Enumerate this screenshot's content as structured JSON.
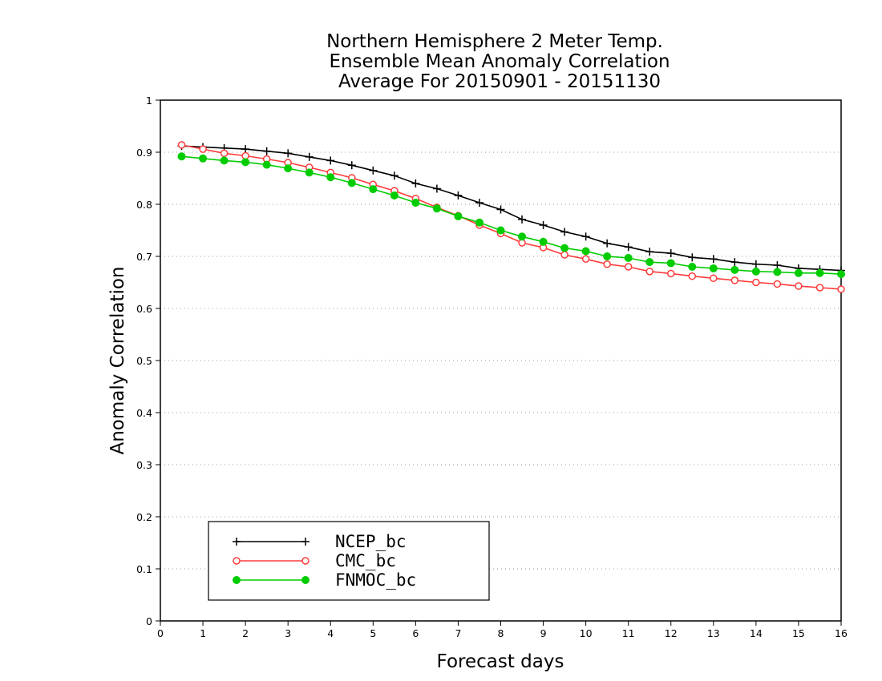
{
  "chart_data": {
    "type": "line",
    "title": [
      "Northern Hemisphere 2 Meter Temp.",
      "Ensemble Mean Anomaly Correlation",
      "Average For 20150901 - 20151130"
    ],
    "xlabel": "Forecast days",
    "ylabel": "Anomaly Correlation",
    "xlim": [
      0,
      16
    ],
    "ylim": [
      0,
      1
    ],
    "xticks": [
      "0",
      "1",
      "2",
      "3",
      "4",
      "5",
      "6",
      "7",
      "8",
      "9",
      "10",
      "11",
      "12",
      "13",
      "14",
      "15",
      "16"
    ],
    "yticks": [
      "0",
      "0.1",
      "0.2",
      "0.3",
      "0.4",
      "0.5",
      "0.6",
      "0.7",
      "0.8",
      "0.9",
      "1"
    ],
    "grid": "dotted horizontal",
    "legend_position": "bottom-left",
    "x": [
      0.5,
      1,
      1.5,
      2,
      2.5,
      3,
      3.5,
      4,
      4.5,
      5,
      5.5,
      6,
      6.5,
      7,
      7.5,
      8,
      8.5,
      9,
      9.5,
      10,
      10.5,
      11,
      11.5,
      12,
      12.5,
      13,
      13.5,
      14,
      14.5,
      15,
      15.5,
      16
    ],
    "series": [
      {
        "name": "NCEP_bc",
        "color": "#000000",
        "marker": "plus",
        "values": [
          0.912,
          0.91,
          0.908,
          0.906,
          0.902,
          0.898,
          0.891,
          0.884,
          0.875,
          0.865,
          0.855,
          0.84,
          0.83,
          0.817,
          0.803,
          0.79,
          0.771,
          0.76,
          0.747,
          0.738,
          0.725,
          0.718,
          0.709,
          0.706,
          0.698,
          0.695,
          0.689,
          0.685,
          0.683,
          0.677,
          0.675,
          0.673
        ]
      },
      {
        "name": "CMC_bc",
        "color": "#ff3b3b",
        "marker": "open-circle",
        "values": [
          0.914,
          0.906,
          0.898,
          0.893,
          0.887,
          0.88,
          0.871,
          0.861,
          0.851,
          0.838,
          0.826,
          0.811,
          0.794,
          0.778,
          0.76,
          0.744,
          0.726,
          0.717,
          0.703,
          0.695,
          0.685,
          0.68,
          0.671,
          0.667,
          0.662,
          0.658,
          0.654,
          0.65,
          0.647,
          0.643,
          0.64,
          0.637
        ]
      },
      {
        "name": "FNMOC_bc",
        "color": "#00cc00",
        "marker": "filled-circle",
        "values": [
          0.892,
          0.888,
          0.884,
          0.881,
          0.876,
          0.869,
          0.861,
          0.852,
          0.841,
          0.829,
          0.817,
          0.803,
          0.792,
          0.777,
          0.765,
          0.75,
          0.738,
          0.728,
          0.716,
          0.71,
          0.7,
          0.697,
          0.689,
          0.687,
          0.68,
          0.677,
          0.674,
          0.671,
          0.67,
          0.668,
          0.668,
          0.666
        ]
      }
    ]
  }
}
